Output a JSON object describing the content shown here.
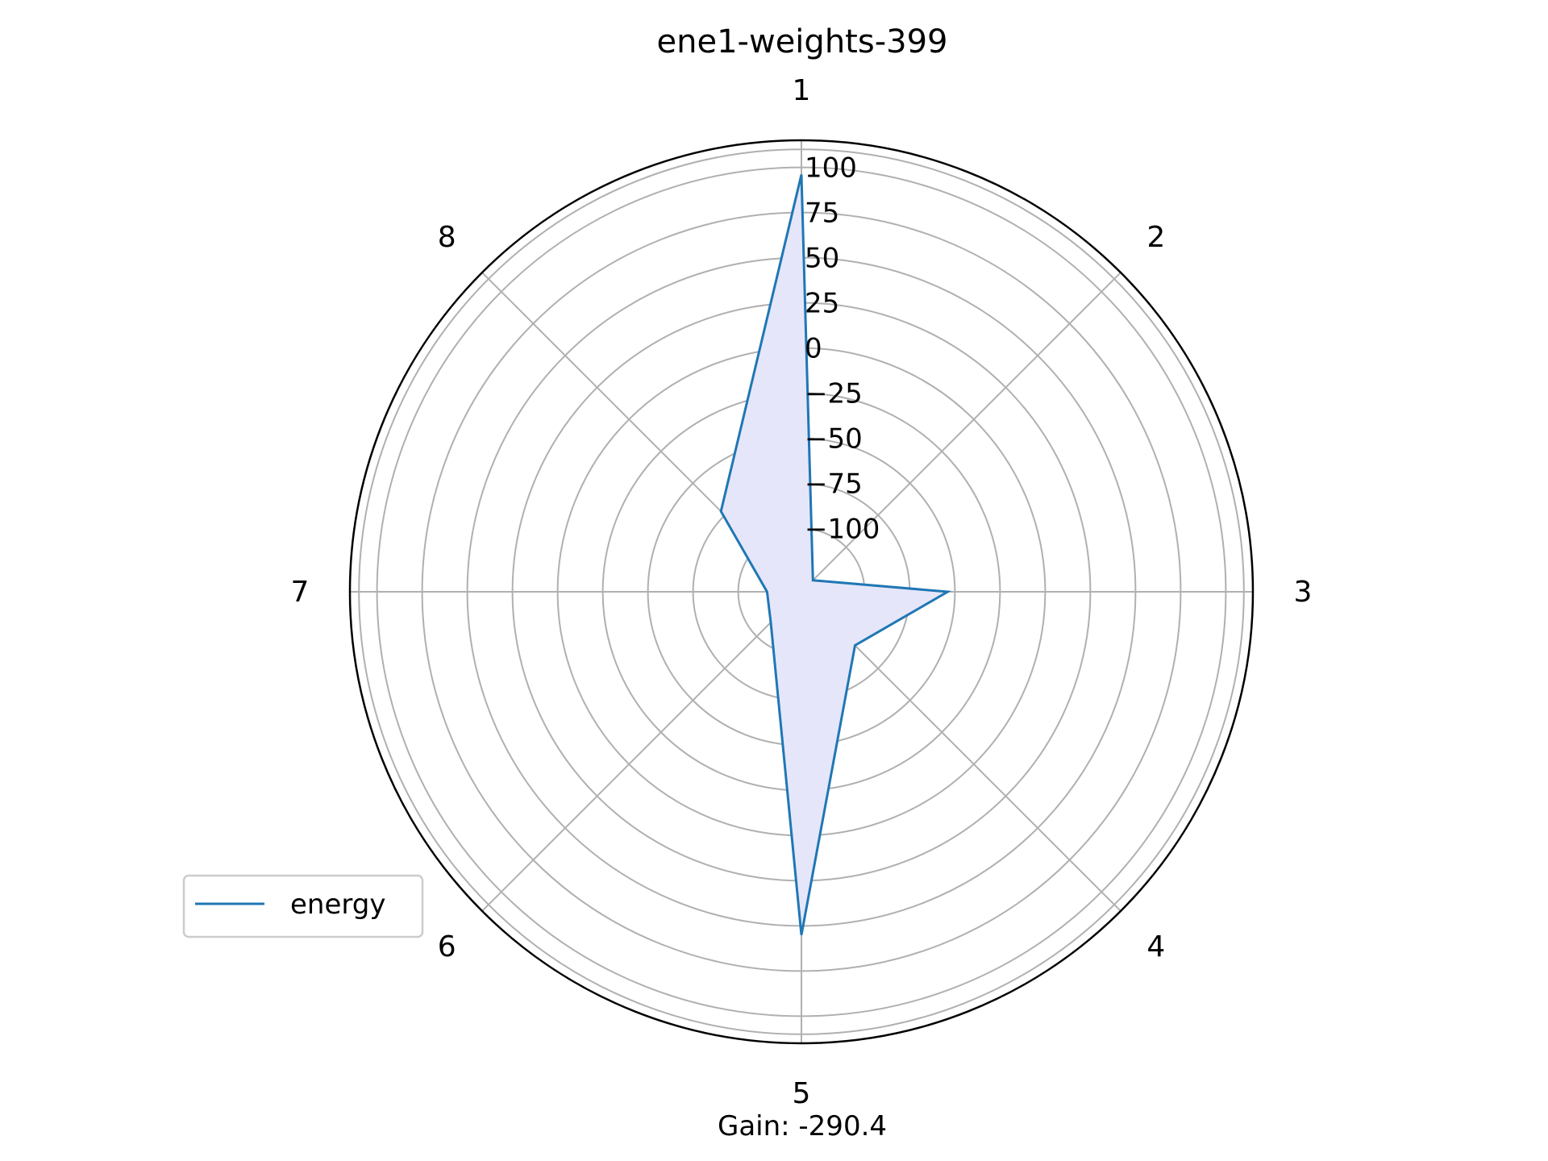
{
  "chart_data": {
    "type": "radar",
    "title": "ene1-weights-399",
    "footer": "Gain: -290.4",
    "categories": [
      "1",
      "2",
      "3",
      "4",
      "5",
      "6",
      "7",
      "8"
    ],
    "rlim": [
      -135,
      115
    ],
    "rticks": [
      -100,
      -75,
      -50,
      -25,
      0,
      25,
      50,
      75,
      100
    ],
    "rtick_labels": [
      "−100",
      "−75",
      "−50",
      "−25",
      "0",
      "25",
      "50",
      "75",
      "100"
    ],
    "extra_gridline": 110,
    "grid": true,
    "legend_position": "lower-left",
    "series": [
      {
        "name": "energy",
        "values": [
          96,
          -126,
          -54,
          -93,
          55,
          -111,
          -116,
          -72
        ],
        "color": "#1f77b4",
        "fill": "#e6e6fa"
      }
    ]
  }
}
